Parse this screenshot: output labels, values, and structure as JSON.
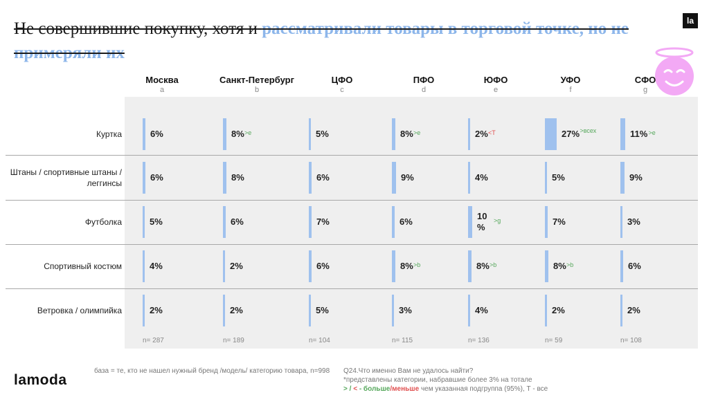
{
  "header": {
    "title_plain": "Не совершившие покупку, хотя и",
    "title_highlight": "рассматривали товары в торговой точке, но не примеряли их",
    "logo_mark": "la"
  },
  "colors": {
    "bar": "#9fc1ee",
    "more": "#56a85c",
    "less": "#e05050"
  },
  "chart_data": {
    "type": "bar",
    "title": "Не совершившие покупку, хотя и рассматривали товары в торговой точке, но не примеряли их",
    "unit": "%",
    "xlim": [
      0,
      100
    ],
    "columns": [
      {
        "name": "Москва",
        "letter": "a",
        "n": "n= 287"
      },
      {
        "name": "Санкт-Петербург",
        "letter": "b",
        "n": "n= 189"
      },
      {
        "name": "ЦФО",
        "letter": "c",
        "n": "n= 104"
      },
      {
        "name": "ПФО",
        "letter": "d",
        "n": "n= 115"
      },
      {
        "name": "ЮФО",
        "letter": "e",
        "n": "n= 136"
      },
      {
        "name": "УФО",
        "letter": "f",
        "n": "n= 59"
      },
      {
        "name": "СФО",
        "letter": "g",
        "n": "n= 108"
      }
    ],
    "rows": [
      {
        "label": "Куртка",
        "values": [
          6,
          8,
          5,
          8,
          2,
          27,
          11
        ],
        "labels": [
          "6%",
          "8%",
          "5%",
          "8%",
          "2%",
          "27%",
          "11%"
        ],
        "sig": [
          "",
          ">e",
          "",
          ">e",
          "<T",
          ">всех",
          ">e"
        ]
      },
      {
        "label": "Штаны / спортивные штаны / леггинсы",
        "values": [
          6,
          8,
          6,
          9,
          4,
          5,
          9
        ],
        "labels": [
          "6%",
          "8%",
          "6%",
          "9%",
          "4%",
          "5%",
          "9%"
        ],
        "sig": [
          "",
          "",
          "",
          "",
          "",
          "",
          ""
        ]
      },
      {
        "label": "Футболка",
        "values": [
          5,
          6,
          7,
          6,
          10,
          7,
          3
        ],
        "labels": [
          "5%",
          "6%",
          "7%",
          "6%",
          "10 %",
          "7%",
          "3%"
        ],
        "sig": [
          "",
          "",
          "",
          "",
          ">g",
          "",
          ""
        ]
      },
      {
        "label": "Спортивный костюм",
        "values": [
          4,
          2,
          6,
          8,
          8,
          8,
          6
        ],
        "labels": [
          "4%",
          "2%",
          "6%",
          "8%",
          "8%",
          "8%",
          "6%"
        ],
        "sig": [
          "",
          "",
          "",
          ">b",
          ">b",
          ">b",
          ""
        ]
      },
      {
        "label": "Ветровка / олимпийка",
        "values": [
          2,
          2,
          5,
          3,
          4,
          2,
          2
        ],
        "labels": [
          "2%",
          "2%",
          "5%",
          "3%",
          "4%",
          "2%",
          "2%"
        ],
        "sig": [
          "",
          "",
          "",
          "",
          "",
          "",
          ""
        ]
      }
    ]
  },
  "footer": {
    "logo": "lamoda",
    "base_note": "база = те, кто не нашел нужный бренд /модель/ категорию товара, n=998",
    "question": "Q24.Что именно Вам не удалось найти?",
    "categories_note": "*представлены категории, набравшие более 3% на тотале",
    "legend_more": "> / ",
    "legend_less": "< ",
    "legend_dash": "- ",
    "legend_more_word": "больше",
    "legend_sep": "/",
    "legend_less_word": "меньше",
    "legend_rest": " чем указанная подгруппа (95%), Т - все"
  }
}
